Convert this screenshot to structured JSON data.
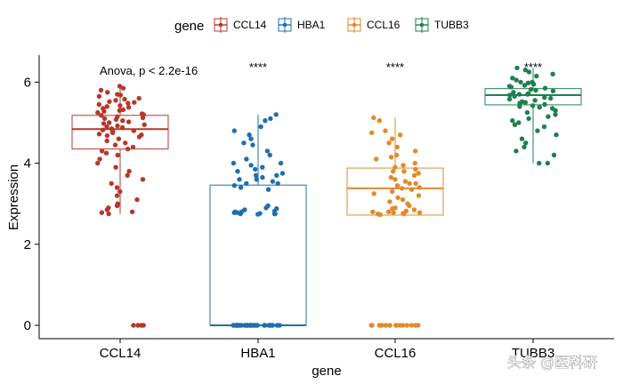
{
  "chart_data": {
    "type": "box",
    "xlabel": "gene",
    "ylabel": "Expression",
    "categories": [
      "CCL14",
      "HBA1",
      "CCL16",
      "TUBB3"
    ],
    "ylim": [
      -0.2,
      6.65
    ],
    "yticks": [
      0,
      2,
      4,
      6
    ],
    "legend": {
      "title": "gene",
      "position": "top",
      "items": [
        {
          "label": "CCL14",
          "color": "#B5382A"
        },
        {
          "label": "HBA1",
          "color": "#1F6FAE"
        },
        {
          "label": "CCL16",
          "color": "#E08A2A"
        },
        {
          "label": "TUBB3",
          "color": "#1E8050"
        }
      ]
    },
    "annotation": "Anova, p < 2.2e-16",
    "significance": [
      "",
      "****",
      "****",
      "****"
    ],
    "boxes": [
      {
        "name": "CCL14",
        "color": "#B5382A",
        "q1": 4.35,
        "median": 4.84,
        "q3": 5.18,
        "whisker_low": 2.75,
        "whisker_high": 5.9
      },
      {
        "name": "HBA1",
        "color": "#1F6FAE",
        "q1": 0.0,
        "median": 0.0,
        "q3": 3.46,
        "whisker_low": 0.0,
        "whisker_high": 5.2
      },
      {
        "name": "CCL16",
        "color": "#E08A2A",
        "q1": 2.72,
        "median": 3.38,
        "q3": 3.88,
        "whisker_low": 2.72,
        "whisker_high": 5.12
      },
      {
        "name": "TUBB3",
        "color": "#1E8050",
        "q1": 5.44,
        "median": 5.68,
        "q3": 5.84,
        "whisker_low": 4.0,
        "whisker_high": 6.35
      }
    ],
    "jitter_points": {
      "CCL14": [
        5.9,
        5.85,
        5.8,
        5.75,
        5.7,
        5.68,
        5.65,
        5.6,
        5.58,
        5.55,
        5.52,
        5.5,
        5.48,
        5.45,
        5.42,
        5.4,
        5.38,
        5.35,
        5.32,
        5.3,
        5.28,
        5.25,
        5.22,
        5.2,
        5.18,
        5.15,
        5.12,
        5.1,
        5.08,
        5.05,
        5.02,
        5.0,
        4.98,
        4.95,
        4.92,
        4.9,
        4.88,
        4.85,
        4.82,
        4.8,
        4.78,
        4.75,
        4.72,
        4.7,
        4.68,
        4.65,
        4.6,
        4.55,
        4.5,
        4.45,
        4.4,
        4.35,
        4.3,
        4.25,
        4.2,
        4.1,
        4.0,
        3.9,
        3.8,
        3.7,
        3.6,
        3.5,
        3.4,
        3.3,
        3.2,
        3.1,
        3.0,
        2.95,
        2.9,
        2.85,
        2.8,
        2.78,
        2.75,
        0.0,
        0.0,
        0.0,
        0.0
      ],
      "HBA1": [
        5.2,
        5.1,
        5.05,
        4.9,
        4.8,
        4.7,
        4.6,
        4.5,
        4.45,
        4.3,
        4.2,
        4.1,
        4.0,
        4.0,
        3.95,
        3.9,
        3.85,
        3.8,
        3.75,
        3.7,
        3.7,
        3.65,
        3.6,
        3.6,
        3.55,
        3.5,
        3.5,
        3.45,
        3.4,
        3.35,
        2.95,
        2.9,
        2.88,
        2.85,
        2.82,
        2.8,
        2.8,
        2.78,
        2.78,
        2.76,
        2.75,
        2.75,
        2.75,
        2.74,
        0,
        0,
        0,
        0,
        0,
        0,
        0,
        0,
        0,
        0,
        0,
        0,
        0,
        0,
        0,
        0,
        0,
        0,
        0,
        0,
        0,
        0,
        0,
        0,
        0,
        0,
        0,
        0,
        0,
        0
      ],
      "CCL16": [
        5.12,
        5.05,
        4.8,
        4.75,
        4.7,
        4.6,
        4.5,
        4.4,
        4.3,
        4.2,
        4.15,
        4.1,
        4.0,
        3.95,
        3.9,
        3.85,
        3.8,
        3.8,
        3.75,
        3.7,
        3.65,
        3.6,
        3.55,
        3.5,
        3.5,
        3.45,
        3.4,
        3.38,
        3.35,
        3.3,
        3.25,
        3.2,
        3.15,
        3.1,
        3.05,
        3.0,
        2.95,
        2.9,
        2.88,
        2.85,
        2.82,
        2.8,
        2.8,
        2.78,
        2.78,
        2.76,
        2.75,
        2.75,
        2.74,
        2.73,
        0,
        0,
        0,
        0,
        0,
        0,
        0,
        0,
        0,
        0,
        0,
        0,
        0,
        0,
        0,
        0
      ],
      "TUBB3": [
        6.35,
        6.3,
        6.25,
        6.2,
        6.15,
        6.1,
        6.05,
        6.0,
        6.0,
        5.98,
        5.95,
        5.92,
        5.9,
        5.88,
        5.85,
        5.82,
        5.8,
        5.78,
        5.75,
        5.72,
        5.7,
        5.7,
        5.68,
        5.65,
        5.62,
        5.6,
        5.58,
        5.55,
        5.52,
        5.5,
        5.48,
        5.45,
        5.42,
        5.4,
        5.38,
        5.35,
        5.3,
        5.25,
        5.2,
        5.15,
        5.1,
        5.05,
        5.0,
        4.95,
        4.9,
        4.8,
        4.7,
        4.6,
        4.5,
        4.4,
        4.3,
        4.2,
        4.0,
        4.0
      ]
    }
  },
  "watermark": "头条 @医科研"
}
